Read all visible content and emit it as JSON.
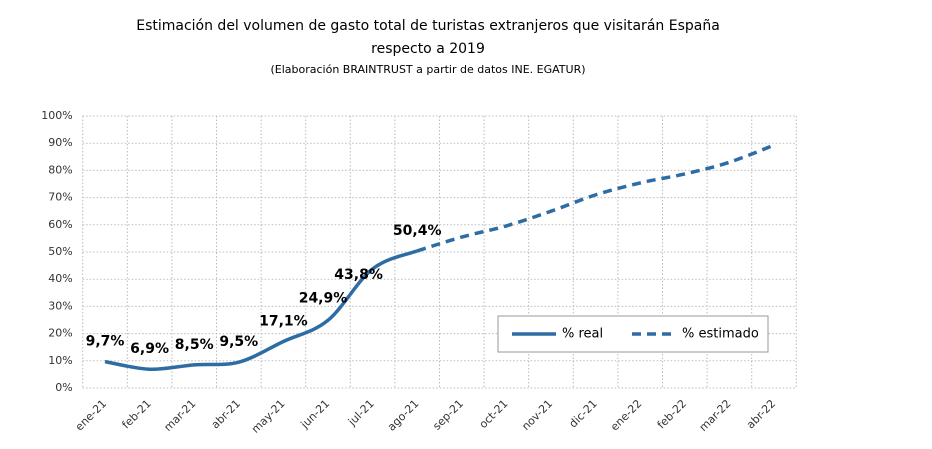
{
  "chart_data": {
    "type": "line",
    "title": [
      "Estimación del volumen de gasto total de turistas extranjeros que visitarán España",
      "respecto a 2019"
    ],
    "subtitle": "(Elaboración BRAINTRUST a partir de datos INE. EGATUR)",
    "categories": [
      "ene-21",
      "feb-21",
      "mar-21",
      "abr-21",
      "may-21",
      "jun-21",
      "jul-21",
      "ago-21",
      "sep-21",
      "oct-21",
      "nov-21",
      "dic-21",
      "ene-22",
      "feb-22",
      "mar-22",
      "abr-22"
    ],
    "series": [
      {
        "name": "% real",
        "color": "#2e6ca4",
        "dashed": false,
        "values": [
          9.7,
          6.9,
          8.5,
          9.5,
          17.1,
          24.9,
          43.8,
          50.4,
          null,
          null,
          null,
          null,
          null,
          null,
          null,
          null
        ],
        "value_labels": [
          "9,7%",
          "6,9%",
          "8,5%",
          "9,5%",
          "17,1%",
          "24,9%",
          "43,8%",
          "50,4%",
          null,
          null,
          null,
          null,
          null,
          null,
          null,
          null
        ]
      },
      {
        "name": "% estimado",
        "color": "#2e6ca4",
        "dashed": true,
        "values": [
          null,
          null,
          null,
          null,
          null,
          null,
          null,
          50.4,
          55.5,
          59.6,
          65,
          71,
          75.4,
          78.7,
          83,
          89.3
        ]
      }
    ],
    "ylim": [
      0,
      100
    ],
    "yticks": [
      {
        "value": 0,
        "label": "0%"
      },
      {
        "value": 10,
        "label": "10%"
      },
      {
        "value": 20,
        "label": "20%"
      },
      {
        "value": 30,
        "label": "30%"
      },
      {
        "value": 40,
        "label": "40%"
      },
      {
        "value": 50,
        "label": "50%"
      },
      {
        "value": 60,
        "label": "60%"
      },
      {
        "value": 70,
        "label": "70%"
      },
      {
        "value": 80,
        "label": "80%"
      },
      {
        "value": 90,
        "label": "90%"
      },
      {
        "value": 100,
        "label": "100%"
      }
    ],
    "grid": true,
    "legend": "lower right"
  }
}
